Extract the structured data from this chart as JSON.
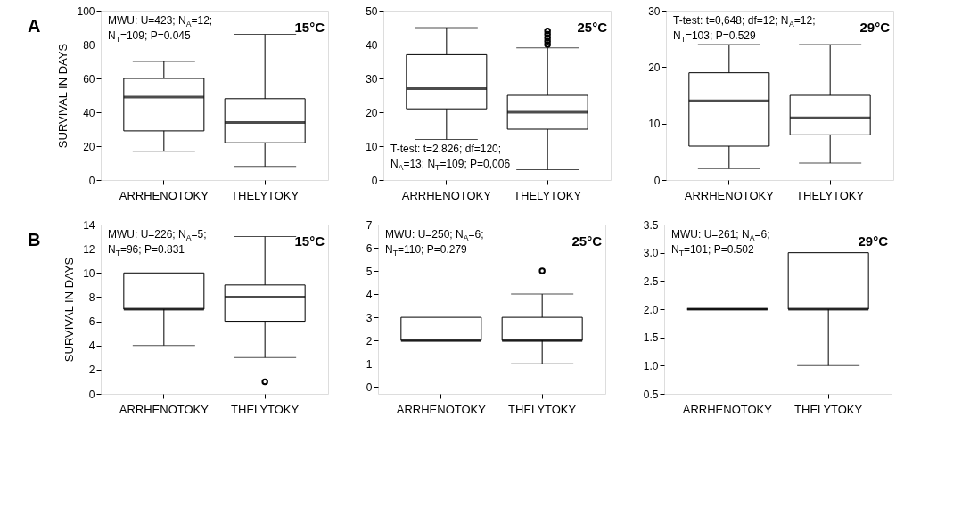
{
  "chart_data": [
    {
      "type": "box",
      "title": "15°C",
      "ylabel": "SURVIVAL IN DAYS",
      "annotations": [
        "A",
        "MWU: U=423; N$_{A}$=12;",
        "N$_{T}$=109; P=0.045"
      ],
      "categories": [
        "ARRHENOTOKY",
        "THELYTOKY"
      ],
      "boxes": [
        {
          "low": 17,
          "q1": 29,
          "median": 49,
          "q3": 60,
          "high": 70
        },
        {
          "low": 8,
          "q1": 22,
          "median": 34,
          "q3": 48,
          "high": 86
        }
      ],
      "ylim": [
        0,
        100
      ],
      "yticks": [
        0,
        20,
        40,
        60,
        80,
        100
      ],
      "grid": false
    },
    {
      "type": "box",
      "title": "25°C",
      "annotations": [
        "T-test: t=2.826; df=120;",
        "N$_{A}$=13; N$_{T}$=109; P=0,006"
      ],
      "categories": [
        "ARRHENOTOKY",
        "THELYTOKY"
      ],
      "boxes": [
        {
          "low": 12,
          "q1": 21,
          "median": 27,
          "q3": 37,
          "high": 45
        },
        {
          "low": 3,
          "q1": 15,
          "median": 20,
          "q3": 25,
          "high": 39,
          "outliers": [
            40,
            41,
            42,
            43,
            44
          ]
        }
      ],
      "ylim": [
        0,
        50
      ],
      "yticks": [
        0,
        10,
        20,
        30,
        40,
        50
      ],
      "grid": false
    },
    {
      "type": "box",
      "title": "29°C",
      "annotations": [
        "T-test: t=0,648; df=12; N$_{A}$=12;",
        "N$_{T}$=103; P=0.529"
      ],
      "categories": [
        "ARRHENOTOKY",
        "THELYTOKY"
      ],
      "boxes": [
        {
          "low": 2,
          "q1": 6,
          "median": 14,
          "q3": 19,
          "high": 24
        },
        {
          "low": 3,
          "q1": 8,
          "median": 11,
          "q3": 15,
          "high": 24
        }
      ],
      "ylim": [
        0,
        30
      ],
      "yticks": [
        0,
        10,
        20,
        30
      ],
      "grid": false
    },
    {
      "type": "box",
      "title": "15°C",
      "ylabel": "SURVIVAL IN DAYS",
      "annotations": [
        "B",
        "MWU: U=226; N$_{A}$=5;",
        "N$_{T}$=96; P=0.831"
      ],
      "categories": [
        "ARRHENOTOKY",
        "THELYTOKY"
      ],
      "boxes": [
        {
          "low": 4,
          "q1": 7,
          "median": 7,
          "q3": 10,
          "high": 10
        },
        {
          "low": 3,
          "q1": 6,
          "median": 8,
          "q3": 9,
          "high": 13,
          "outliers": [
            1
          ]
        }
      ],
      "ylim": [
        0,
        14
      ],
      "yticks": [
        0,
        2,
        4,
        6,
        8,
        10,
        12,
        14
      ],
      "grid": false
    },
    {
      "type": "box",
      "title": "25°C",
      "annotations": [
        "MWU: U=250; N$_{A}$=6;",
        "N$_{T}$=110; P=0.279"
      ],
      "categories": [
        "ARRHENOTOKY",
        "THELYTOKY"
      ],
      "boxes": [
        {
          "low": 2,
          "q1": 2,
          "median": 2,
          "q3": 3,
          "high": 3
        },
        {
          "low": 1,
          "q1": 2,
          "median": 2,
          "q3": 3,
          "high": 4,
          "outliers": [
            5
          ]
        }
      ],
      "ylim": [
        -0.3,
        7
      ],
      "yticks": [
        0,
        1,
        2,
        3,
        4,
        5,
        6,
        7
      ],
      "grid": false
    },
    {
      "type": "box",
      "title": "29°C",
      "annotations": [
        "MWU: U=261; N$_{A}$=6;",
        "N$_{T}$=101; P=0.502"
      ],
      "categories": [
        "ARRHENOTOKY",
        "THELYTOKY"
      ],
      "boxes": [
        {
          "low": 2,
          "q1": 2,
          "median": 2,
          "q3": 2,
          "high": 2
        },
        {
          "low": 1,
          "q1": 2,
          "median": 2,
          "q3": 3,
          "high": 3
        }
      ],
      "ylim": [
        0.5,
        3.5
      ],
      "yticks": [
        0.5,
        {
          "value": 1,
          "label": "1.0"
        },
        1.5,
        {
          "value": 2,
          "label": "2.0"
        },
        2.5,
        {
          "value": 3,
          "label": "3.0"
        },
        3.5
      ],
      "grid": false
    }
  ]
}
